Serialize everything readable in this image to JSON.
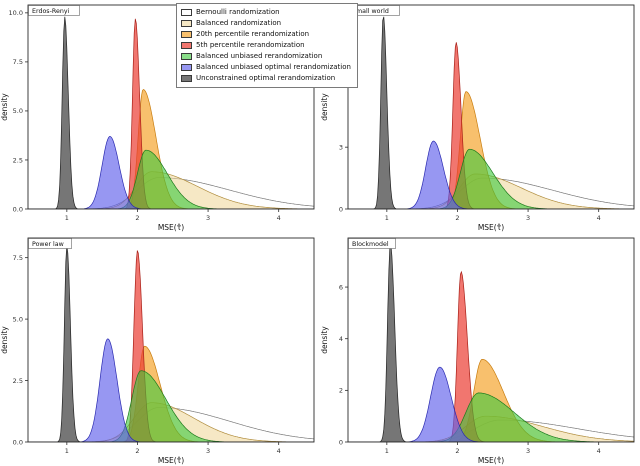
{
  "figure": {
    "ylabel": "density",
    "xlabel": "MSE(τ̂)"
  },
  "legend": {
    "items": [
      {
        "key": "bernoulli",
        "label": "Bernoulli randomization",
        "fill": "rgba(252,252,252,0.45)",
        "stroke": "#7a7a7a"
      },
      {
        "key": "balanced",
        "label": "Balanced randomization",
        "fill": "rgba(238,214,150,0.55)",
        "stroke": "#b08d3e"
      },
      {
        "key": "p20",
        "label": "20th percentile rerandomization",
        "fill": "rgba(245,158,30,0.65)",
        "stroke": "#c87d10"
      },
      {
        "key": "p5",
        "label": "5th percentile rerandomization",
        "fill": "rgba(235,60,50,0.70)",
        "stroke": "#a81f17"
      },
      {
        "key": "bu",
        "label": "Balanced unbiased rerandomization",
        "fill": "rgba(60,200,60,0.60)",
        "stroke": "#1d7a1d"
      },
      {
        "key": "buo",
        "label": "Balanced unbiased optimal rerandomization",
        "fill": "rgba(95,95,235,0.65)",
        "stroke": "#2a2ab0"
      },
      {
        "key": "uo",
        "label": "Unconstrained optimal rerandomization",
        "fill": "rgba(80,80,80,0.78)",
        "stroke": "#222222"
      }
    ]
  },
  "chart_data": [
    {
      "type": "area",
      "panel": "Erdos-Renyi",
      "xlabel": "MSE(τ̂)",
      "ylabel": "density",
      "xlim": [
        0.45,
        4.5
      ],
      "ylim": [
        0,
        10.4
      ],
      "xticks": [
        1,
        2,
        3,
        4
      ],
      "yticks": [
        {
          "v": 0,
          "label": "0.0"
        },
        {
          "v": 2.5,
          "label": "2.5"
        },
        {
          "v": 5,
          "label": "5.0"
        },
        {
          "v": 7.5,
          "label": "7.5"
        },
        {
          "v": 10,
          "label": "10.0"
        }
      ],
      "series": [
        {
          "key": "bernoulli",
          "m": 2.3,
          "sl": 0.3,
          "sr": 1.0,
          "h": 1.6
        },
        {
          "key": "balanced",
          "m": 2.2,
          "sl": 0.22,
          "sr": 0.65,
          "h": 1.9
        },
        {
          "key": "p20",
          "m": 2.08,
          "sl": 0.07,
          "sr": 0.18,
          "h": 6.1
        },
        {
          "key": "p5",
          "m": 1.97,
          "sl": 0.04,
          "sr": 0.06,
          "h": 9.7
        },
        {
          "key": "bu",
          "m": 2.12,
          "sl": 0.12,
          "sr": 0.3,
          "h": 3.0
        },
        {
          "key": "buo",
          "m": 1.61,
          "sl": 0.11,
          "sr": 0.13,
          "h": 3.7
        },
        {
          "key": "uo",
          "m": 0.97,
          "sl": 0.035,
          "sr": 0.05,
          "h": 9.8
        }
      ]
    },
    {
      "type": "area",
      "panel": "Small world",
      "xlabel": "MSE(τ̂)",
      "ylabel": "density",
      "xlim": [
        0.45,
        4.5
      ],
      "ylim": [
        0,
        9.9
      ],
      "xticks": [
        1,
        2,
        3,
        4
      ],
      "yticks": [
        {
          "v": 0,
          "label": "0"
        },
        {
          "v": 3,
          "label": "3"
        },
        {
          "v": 6,
          "label": "6"
        },
        {
          "v": 9,
          "label": "9"
        }
      ],
      "series": [
        {
          "key": "bernoulli",
          "m": 2.35,
          "sl": 0.3,
          "sr": 1.0,
          "h": 1.5
        },
        {
          "key": "balanced",
          "m": 2.25,
          "sl": 0.22,
          "sr": 0.65,
          "h": 1.7
        },
        {
          "key": "p20",
          "m": 2.12,
          "sl": 0.08,
          "sr": 0.2,
          "h": 5.7
        },
        {
          "key": "p5",
          "m": 1.98,
          "sl": 0.045,
          "sr": 0.07,
          "h": 8.1
        },
        {
          "key": "bu",
          "m": 2.17,
          "sl": 0.13,
          "sr": 0.33,
          "h": 2.9
        },
        {
          "key": "buo",
          "m": 1.66,
          "sl": 0.11,
          "sr": 0.14,
          "h": 3.3
        },
        {
          "key": "uo",
          "m": 0.95,
          "sl": 0.035,
          "sr": 0.05,
          "h": 9.4
        }
      ]
    },
    {
      "type": "area",
      "panel": "Power law",
      "xlabel": "MSE(τ̂)",
      "ylabel": "density",
      "xlim": [
        0.45,
        4.5
      ],
      "ylim": [
        0,
        8.3
      ],
      "xticks": [
        1,
        2,
        3,
        4
      ],
      "yticks": [
        {
          "v": 0,
          "label": "0.0"
        },
        {
          "v": 2.5,
          "label": "2.5"
        },
        {
          "v": 5,
          "label": "5.0"
        },
        {
          "v": 7.5,
          "label": "7.5"
        }
      ],
      "series": [
        {
          "key": "bernoulli",
          "m": 2.3,
          "sl": 0.3,
          "sr": 1.0,
          "h": 1.4
        },
        {
          "key": "balanced",
          "m": 2.2,
          "sl": 0.25,
          "sr": 0.6,
          "h": 1.6
        },
        {
          "key": "p20",
          "m": 2.1,
          "sl": 0.09,
          "sr": 0.22,
          "h": 3.9
        },
        {
          "key": "p5",
          "m": 2.0,
          "sl": 0.05,
          "sr": 0.07,
          "h": 7.8
        },
        {
          "key": "bu",
          "m": 2.05,
          "sl": 0.13,
          "sr": 0.35,
          "h": 2.9
        },
        {
          "key": "buo",
          "m": 1.58,
          "sl": 0.11,
          "sr": 0.13,
          "h": 4.2
        },
        {
          "key": "uo",
          "m": 1.0,
          "sl": 0.035,
          "sr": 0.05,
          "h": 8.0
        }
      ]
    },
    {
      "type": "area",
      "panel": "Blockmodel",
      "xlabel": "MSE(τ̂)",
      "ylabel": "density",
      "xlim": [
        0.45,
        4.5
      ],
      "ylim": [
        0,
        7.9
      ],
      "xticks": [
        1,
        2,
        3,
        4
      ],
      "yticks": [
        {
          "v": 0,
          "label": "0"
        },
        {
          "v": 2,
          "label": "2"
        },
        {
          "v": 4,
          "label": "4"
        },
        {
          "v": 6,
          "label": "6"
        }
      ],
      "series": [
        {
          "key": "bernoulli",
          "m": 2.6,
          "sl": 0.35,
          "sr": 1.1,
          "h": 0.85
        },
        {
          "key": "balanced",
          "m": 2.4,
          "sl": 0.28,
          "sr": 0.8,
          "h": 1.0
        },
        {
          "key": "p20",
          "m": 2.35,
          "sl": 0.12,
          "sr": 0.3,
          "h": 3.2
        },
        {
          "key": "p5",
          "m": 2.05,
          "sl": 0.05,
          "sr": 0.09,
          "h": 6.6
        },
        {
          "key": "bu",
          "m": 2.3,
          "sl": 0.18,
          "sr": 0.5,
          "h": 1.9
        },
        {
          "key": "buo",
          "m": 1.75,
          "sl": 0.13,
          "sr": 0.16,
          "h": 2.9
        },
        {
          "key": "uo",
          "m": 1.05,
          "sl": 0.04,
          "sr": 0.06,
          "h": 7.7
        }
      ]
    }
  ]
}
